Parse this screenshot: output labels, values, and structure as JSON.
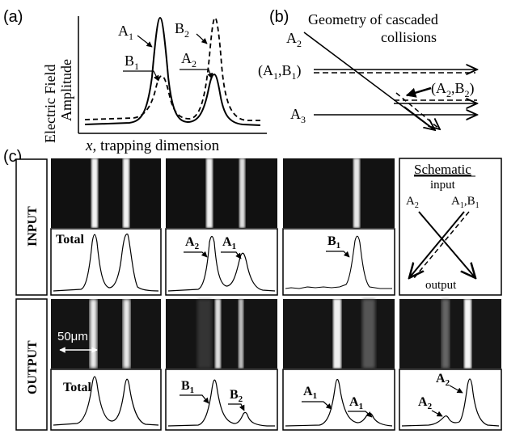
{
  "panel_a": {
    "tag": "(a)",
    "ylabel_line1": "Electric Field",
    "ylabel_line2": "Amplitude",
    "xlabel_italic": "x",
    "xlabel_rest": ", trapping dimension",
    "label_A1": "A",
    "label_B1": "B",
    "label_B2": "B",
    "label_A2": "A",
    "sub1": "1",
    "sub2": "2"
  },
  "panel_b": {
    "tag": "(b)",
    "title_line1": "Geometry of cascaded",
    "title_line2": "collisions",
    "label_A2": "A",
    "label_A1B1": "(A",
    "label_A1B1_comma": ",B",
    "label_A1B1_close": ")",
    "label_A2B2": "(A",
    "label_A2B2_comma": ",B",
    "label_A2B2_close": ")",
    "label_A3": "A",
    "sub1": "1",
    "sub2": "2",
    "sub3": "3"
  },
  "panel_c": {
    "tag": "(c)",
    "row_input": "INPUT",
    "row_output": "OUTPUT",
    "total_in": "Total",
    "total_out": "Total",
    "scale": "50μm",
    "letter_A": "A",
    "letter_B": "B",
    "sub1": "1",
    "sub2": "2",
    "schematic_title": "Schematic",
    "schematic_input": "input",
    "schematic_output": "output",
    "schematic_A2": "A",
    "schematic_A1B1": "A",
    "schematic_A1B1_b": ",B"
  }
}
